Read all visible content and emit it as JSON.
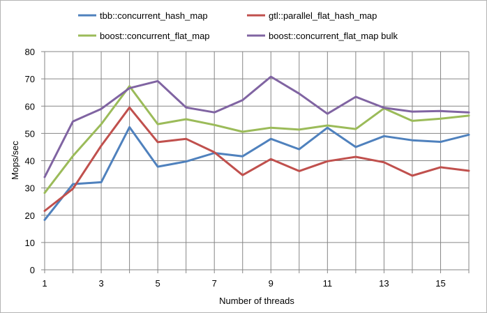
{
  "chart_data": {
    "type": "line",
    "title": "",
    "xlabel": "Number of threads",
    "ylabel": "Mops/sec",
    "xlim": [
      1,
      16
    ],
    "ylim": [
      0,
      80
    ],
    "x_ticks": [
      1,
      3,
      5,
      7,
      9,
      11,
      13,
      15
    ],
    "y_ticks": [
      0,
      10,
      20,
      30,
      40,
      50,
      60,
      70,
      80
    ],
    "grid": true,
    "legend_position": "top",
    "x": [
      1,
      2,
      3,
      4,
      5,
      6,
      7,
      8,
      9,
      10,
      11,
      12,
      13,
      14,
      15,
      16
    ],
    "series": [
      {
        "name": "tbb::concurrent_hash_map",
        "color": "#4f81bd",
        "values": [
          18.3,
          31.4,
          32.1,
          52.3,
          37.8,
          39.7,
          42.8,
          41.6,
          48.0,
          44.2,
          52.1,
          45.0,
          49.0,
          47.5,
          46.9,
          49.5
        ]
      },
      {
        "name": "gtl::parallel_flat_hash_map",
        "color": "#c0504d",
        "values": [
          21.6,
          29.7,
          45.5,
          59.5,
          46.8,
          48.0,
          43.1,
          34.7,
          40.6,
          36.2,
          39.8,
          41.4,
          39.4,
          34.5,
          37.6,
          36.3
        ]
      },
      {
        "name": "boost::concurrent_flat_map",
        "color": "#9bbb59",
        "values": [
          28.2,
          41.7,
          53.4,
          67.3,
          53.4,
          55.2,
          53.1,
          50.6,
          52.1,
          51.4,
          52.9,
          51.6,
          59.2,
          54.6,
          55.4,
          56.5
        ]
      },
      {
        "name": "boost::concurrent_flat_map bulk",
        "color": "#8064a2",
        "values": [
          34.0,
          54.4,
          59.0,
          66.6,
          69.2,
          59.5,
          57.7,
          62.2,
          70.8,
          64.6,
          57.2,
          63.4,
          59.4,
          58.0,
          58.2,
          57.7
        ]
      }
    ]
  }
}
